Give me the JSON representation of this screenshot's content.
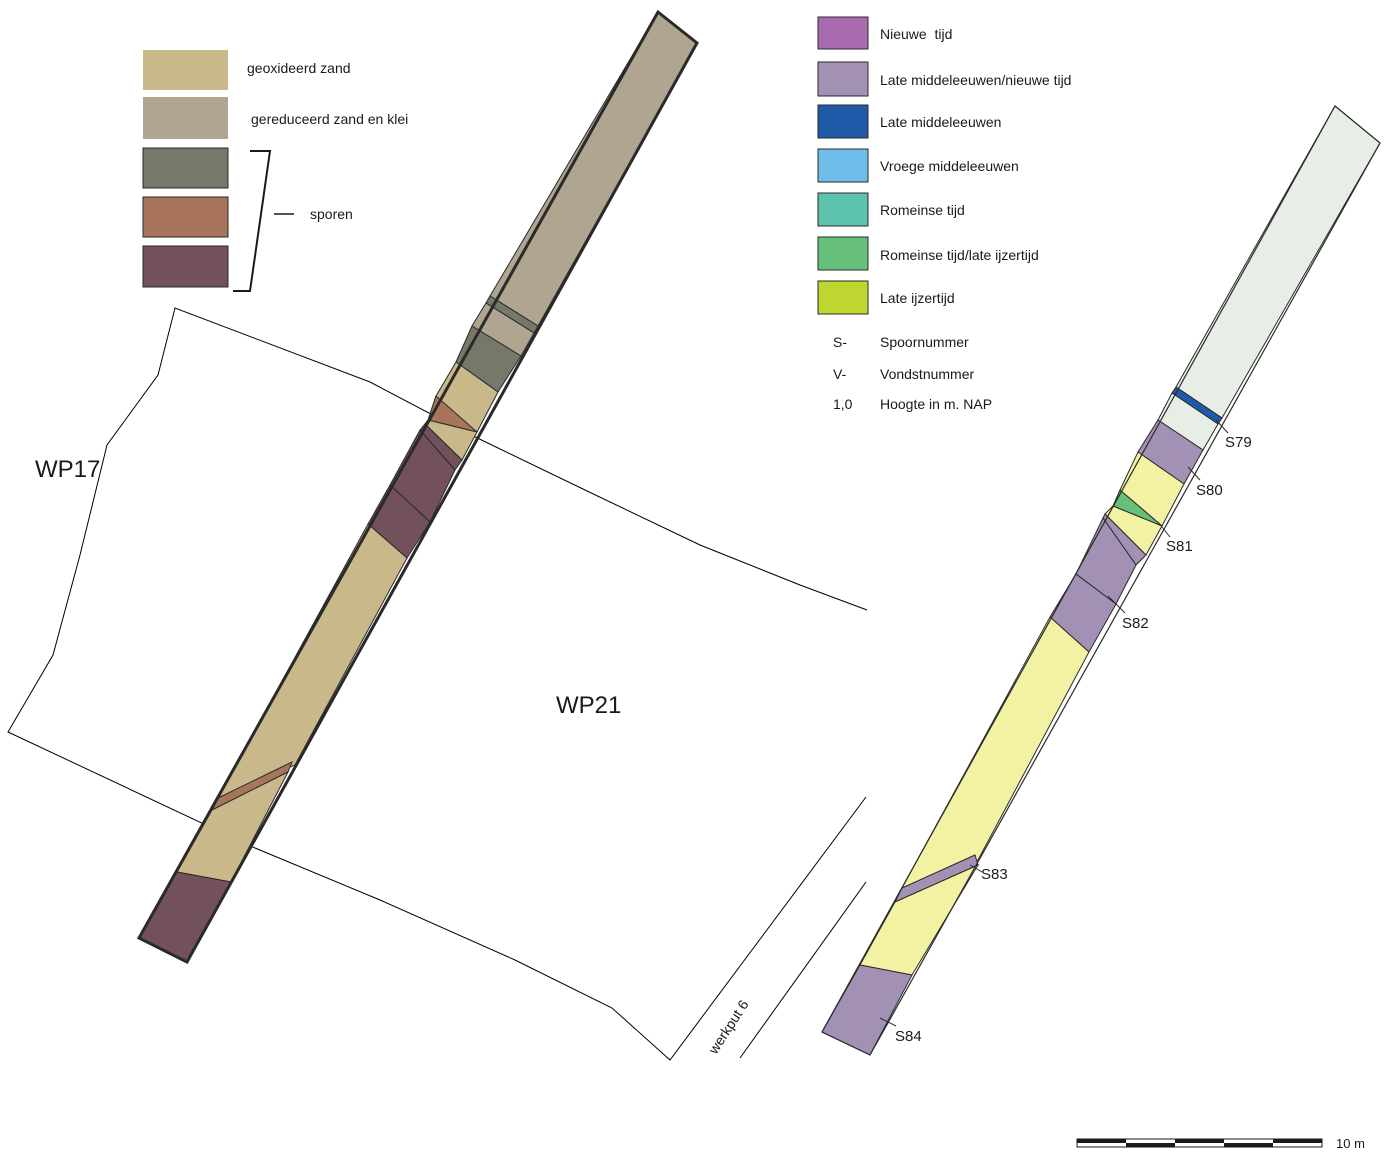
{
  "legend_soil": {
    "items": [
      {
        "label": "geoxideerd zand",
        "color": "#c8b88a"
      },
      {
        "label": "gereduceerd zand en klei",
        "color": "#b0a590"
      },
      {
        "label": "",
        "color": "#76786a"
      },
      {
        "label": "",
        "color": "#a8745a"
      },
      {
        "label": "",
        "color": "#73515a"
      }
    ],
    "bracket_label": "sporen"
  },
  "legend_period": {
    "items": [
      {
        "label": "Nieuwe  tijd",
        "color": "#a96bb0"
      },
      {
        "label": "Late middeleeuwen/nieuwe tijd",
        "color": "#a391b5"
      },
      {
        "label": "Late middeleeuwen",
        "color": "#1f5aa8"
      },
      {
        "label": "Vroege middeleeuwen",
        "color": "#6fbde8"
      },
      {
        "label": "Romeinse tijd",
        "color": "#5ec3ae"
      },
      {
        "label": "Romeinse tijd/late ijzertijd",
        "color": "#66c07a"
      },
      {
        "label": "Late ijzertijd",
        "color": "#bfd630"
      }
    ],
    "abbreviations": [
      {
        "key": "S-",
        "text": "Spoornummer"
      },
      {
        "key": "V-",
        "text": "Vondstnummer"
      },
      {
        "key": "1,0",
        "text": "Hoogte in m. NAP"
      }
    ]
  },
  "map_labels": {
    "wp17": "WP17",
    "wp21": "WP21",
    "werkput": "werkput 6"
  },
  "feature_labels": [
    "S79",
    "S80",
    "S81",
    "S82",
    "S83",
    "S84"
  ],
  "scale_bar": {
    "label": "10 m"
  },
  "colors": {
    "section_background": "#e6eee6",
    "late_iron_age_fill": "#f2f2a2"
  }
}
